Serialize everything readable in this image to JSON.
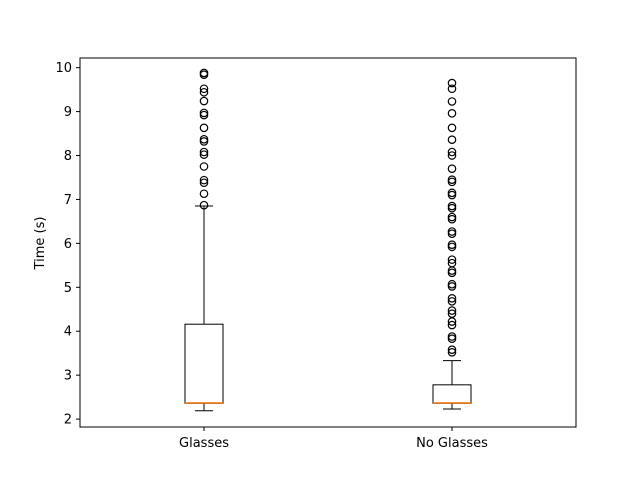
{
  "chart_data": {
    "type": "box",
    "title": "",
    "xlabel": "",
    "ylabel": "Time (s)",
    "ylim": [
      1.82,
      10.22
    ],
    "yticks": [
      2,
      3,
      4,
      5,
      6,
      7,
      8,
      9,
      10
    ],
    "categories": [
      "Glasses",
      "No Glasses"
    ],
    "grid": false,
    "colors": {
      "box": "#000000",
      "median": "#ff7f0e",
      "flier": "#000000"
    },
    "boxes": [
      {
        "name": "Glasses",
        "whisker_low": 2.19,
        "q1": 2.36,
        "median": 2.37,
        "q3": 4.16,
        "whisker_high": 6.85,
        "fliers": [
          6.87,
          7.13,
          7.38,
          7.44,
          7.75,
          8.02,
          8.08,
          8.32,
          8.37,
          8.63,
          8.92,
          8.97,
          9.24,
          9.44,
          9.52,
          9.84,
          9.88
        ]
      },
      {
        "name": "No Glasses",
        "whisker_low": 2.23,
        "q1": 2.36,
        "median": 2.37,
        "q3": 2.78,
        "whisker_high": 3.33,
        "fliers": [
          3.52,
          3.58,
          3.83,
          3.88,
          4.14,
          4.22,
          4.4,
          4.47,
          4.68,
          4.75,
          5.02,
          5.07,
          5.33,
          5.38,
          5.55,
          5.63,
          5.92,
          5.97,
          6.22,
          6.27,
          6.55,
          6.6,
          6.8,
          6.85,
          7.1,
          7.15,
          7.4,
          7.45,
          7.7,
          8.0,
          8.08,
          8.36,
          8.63,
          8.96,
          9.23,
          9.52,
          9.65
        ]
      }
    ]
  }
}
